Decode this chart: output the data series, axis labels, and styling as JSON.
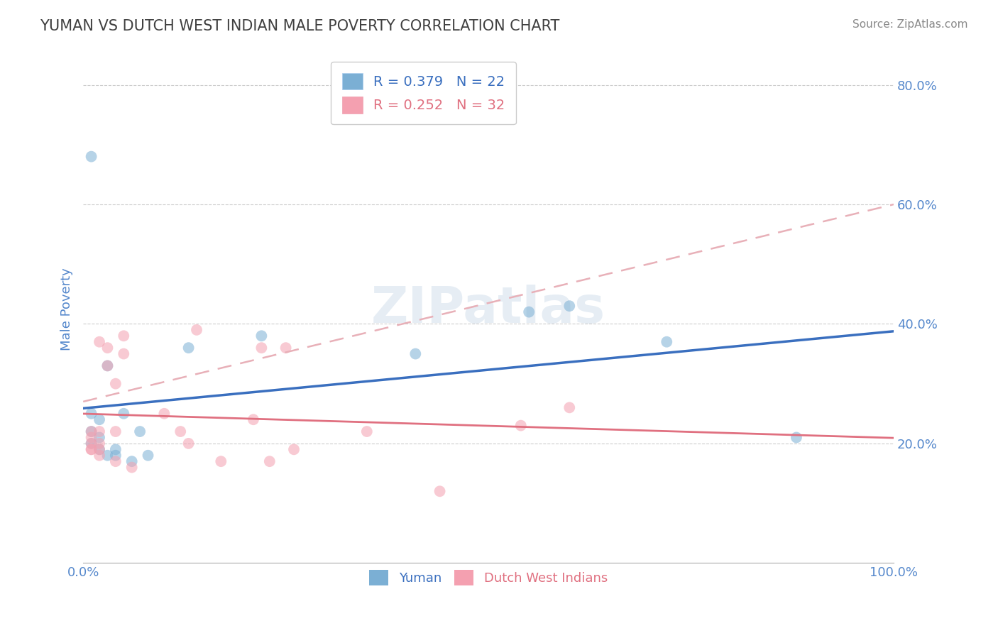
{
  "title": "YUMAN VS DUTCH WEST INDIAN MALE POVERTY CORRELATION CHART",
  "source": "Source: ZipAtlas.com",
  "xlabel": "",
  "ylabel": "Male Poverty",
  "xlim": [
    0.0,
    1.0
  ],
  "ylim": [
    0.0,
    0.85
  ],
  "yticks": [
    0.2,
    0.4,
    0.6,
    0.8
  ],
  "ytick_labels": [
    "20.0%",
    "40.0%",
    "60.0%",
    "80.0%"
  ],
  "xticks": [
    0.0,
    1.0
  ],
  "xtick_labels": [
    "0.0%",
    "100.0%"
  ],
  "legend_entries": [
    {
      "label": "R = 0.379   N = 22",
      "color": "#7bafd4"
    },
    {
      "label": "R = 0.252   N = 32",
      "color": "#f4a0b0"
    }
  ],
  "yuman_points": [
    [
      0.01,
      0.68
    ],
    [
      0.01,
      0.25
    ],
    [
      0.01,
      0.22
    ],
    [
      0.01,
      0.2
    ],
    [
      0.02,
      0.24
    ],
    [
      0.02,
      0.21
    ],
    [
      0.02,
      0.19
    ],
    [
      0.03,
      0.18
    ],
    [
      0.03,
      0.33
    ],
    [
      0.04,
      0.19
    ],
    [
      0.04,
      0.18
    ],
    [
      0.05,
      0.25
    ],
    [
      0.06,
      0.17
    ],
    [
      0.07,
      0.22
    ],
    [
      0.08,
      0.18
    ],
    [
      0.13,
      0.36
    ],
    [
      0.22,
      0.38
    ],
    [
      0.41,
      0.35
    ],
    [
      0.55,
      0.42
    ],
    [
      0.6,
      0.43
    ],
    [
      0.72,
      0.37
    ],
    [
      0.88,
      0.21
    ]
  ],
  "dutch_points": [
    [
      0.01,
      0.22
    ],
    [
      0.01,
      0.21
    ],
    [
      0.01,
      0.2
    ],
    [
      0.01,
      0.19
    ],
    [
      0.01,
      0.19
    ],
    [
      0.02,
      0.22
    ],
    [
      0.02,
      0.2
    ],
    [
      0.02,
      0.19
    ],
    [
      0.02,
      0.18
    ],
    [
      0.02,
      0.37
    ],
    [
      0.03,
      0.36
    ],
    [
      0.03,
      0.33
    ],
    [
      0.04,
      0.3
    ],
    [
      0.04,
      0.22
    ],
    [
      0.04,
      0.17
    ],
    [
      0.05,
      0.38
    ],
    [
      0.05,
      0.35
    ],
    [
      0.06,
      0.16
    ],
    [
      0.1,
      0.25
    ],
    [
      0.12,
      0.22
    ],
    [
      0.13,
      0.2
    ],
    [
      0.14,
      0.39
    ],
    [
      0.17,
      0.17
    ],
    [
      0.21,
      0.24
    ],
    [
      0.22,
      0.36
    ],
    [
      0.23,
      0.17
    ],
    [
      0.25,
      0.36
    ],
    [
      0.26,
      0.19
    ],
    [
      0.35,
      0.22
    ],
    [
      0.44,
      0.12
    ],
    [
      0.54,
      0.23
    ],
    [
      0.6,
      0.26
    ]
  ],
  "yuman_color": "#7bafd4",
  "dutch_color": "#f4a0b0",
  "yuman_line_color": "#3a6fbf",
  "dutch_line_color": "#e07080",
  "dutch_dash_color": "#e8b0b8",
  "background_color": "#ffffff",
  "grid_color": "#cccccc",
  "watermark": "ZIPatlas",
  "title_color": "#404040",
  "axis_label_color": "#5588cc",
  "tick_color": "#5588cc"
}
